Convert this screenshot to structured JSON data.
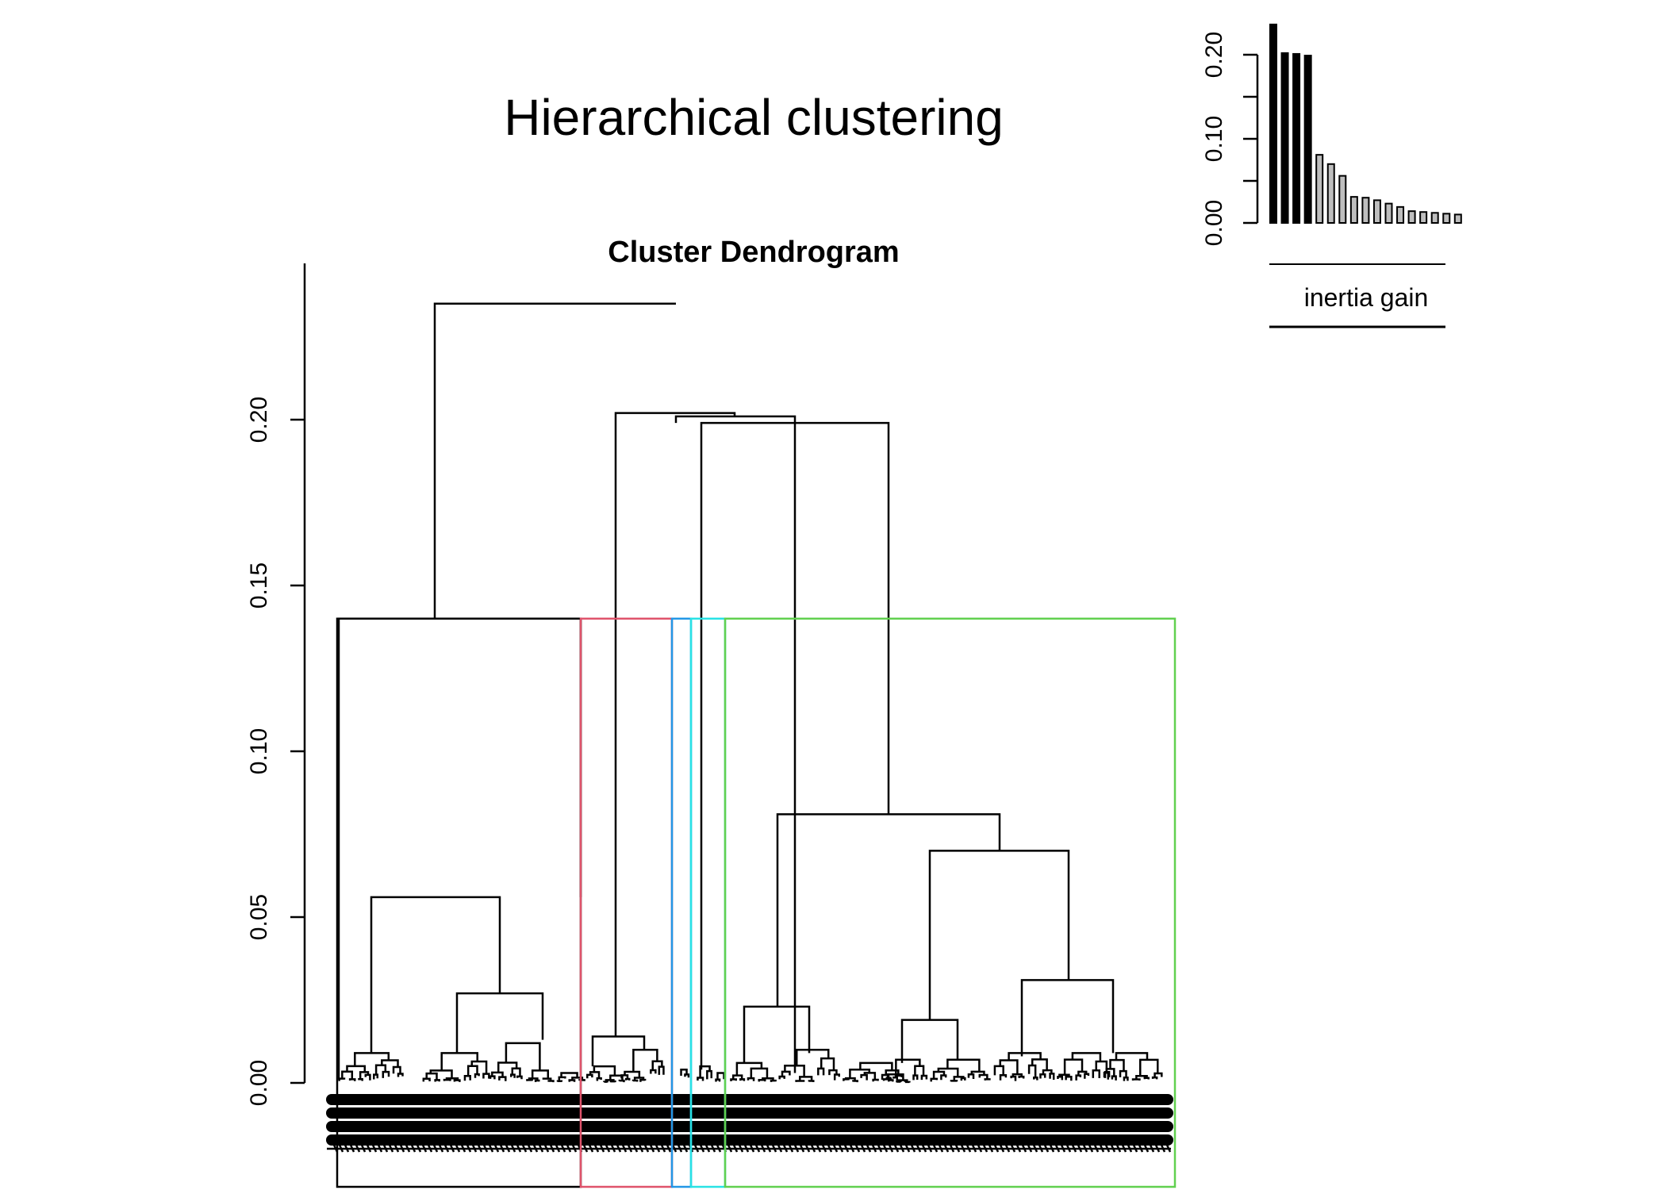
{
  "page_title": "Hierarchical clustering",
  "chart_data": [
    {
      "type": "dendrogram",
      "title": "Cluster Dendrogram",
      "ylabel": "",
      "ylim": [
        0,
        0.24
      ],
      "yticks": [
        "0.00",
        "0.05",
        "0.10",
        "0.15",
        "0.20"
      ],
      "merge_heights": [
        0.235,
        0.202,
        0.201,
        0.199,
        0.14,
        0.081,
        0.07,
        0.056,
        0.031,
        0.027,
        0.023,
        0.019,
        0.014,
        0.013
      ],
      "clusters": [
        {
          "name": "1",
          "color": "#000000"
        },
        {
          "name": "2",
          "color": "#DF536B"
        },
        {
          "name": "3",
          "color": "#2297E6"
        },
        {
          "name": "4",
          "color": "#28E2E5"
        },
        {
          "name": "5",
          "color": "#61D04F"
        }
      ],
      "cut_height": 0.14
    },
    {
      "type": "bar",
      "xlabel": "inertia gain",
      "ylim": [
        0,
        0.24
      ],
      "yticks": [
        "0.00",
        "0.10",
        "0.20"
      ],
      "values": [
        0.236,
        0.202,
        0.201,
        0.199,
        0.081,
        0.07,
        0.056,
        0.031,
        0.03,
        0.027,
        0.023,
        0.019,
        0.014,
        0.013,
        0.012,
        0.011,
        0.01
      ],
      "highlighted_count": 4,
      "highlight_color": "#000000",
      "base_color": "#BEBEBE"
    }
  ]
}
